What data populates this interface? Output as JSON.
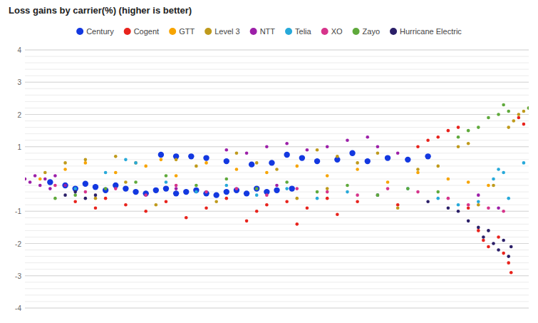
{
  "chart_data": {
    "type": "scatter",
    "title": "Loss gains by carrier(%) (higher is better)",
    "xlim": [
      0,
      100
    ],
    "ylim": [
      -4,
      4
    ],
    "yticks": [
      -4,
      -3,
      -2,
      -1,
      1,
      2,
      3,
      4
    ],
    "grid": true,
    "legend": "top",
    "tick_labels": "y",
    "series": [
      {
        "name": "Century",
        "color": "#1338e0",
        "marker": "large-circle",
        "x": [
          5,
          8,
          10,
          12,
          14,
          16,
          18,
          20,
          22,
          24,
          26,
          28,
          30,
          32,
          34,
          36,
          38,
          40,
          42,
          44,
          46,
          48,
          50,
          53,
          33,
          36,
          40,
          45,
          49,
          52,
          55,
          58,
          62,
          65,
          68,
          72,
          76,
          80,
          27,
          30
        ],
        "values": [
          -0.1,
          -0.2,
          -0.3,
          -0.15,
          -0.25,
          -0.35,
          -0.2,
          -0.3,
          -0.4,
          -0.45,
          -0.35,
          -0.3,
          -0.45,
          -0.4,
          -0.35,
          -0.45,
          -0.5,
          -0.4,
          -0.35,
          -0.45,
          -0.3,
          -0.4,
          -0.35,
          -0.3,
          0.7,
          0.65,
          0.55,
          0.45,
          0.5,
          0.75,
          0.65,
          0.55,
          0.6,
          0.8,
          0.55,
          0.65,
          0.6,
          0.7,
          0.75,
          0.7
        ]
      },
      {
        "name": "Cogent",
        "color": "#e8231c",
        "marker": "circle",
        "x": [
          10,
          14,
          16,
          20,
          24,
          28,
          32,
          36,
          40,
          44,
          48,
          52,
          56,
          60,
          62,
          66,
          70,
          74,
          78,
          80,
          82,
          84,
          86,
          88,
          90,
          91,
          92,
          94,
          95,
          96,
          96.5,
          98,
          99,
          54,
          46
        ],
        "values": [
          -0.7,
          -0.9,
          -0.6,
          -0.8,
          -1.0,
          -0.7,
          -1.2,
          -0.9,
          -0.6,
          -1.3,
          -0.8,
          -0.7,
          -0.9,
          -0.6,
          -1.1,
          -0.7,
          -0.5,
          -0.8,
          1.0,
          1.2,
          1.3,
          1.5,
          1.6,
          -0.9,
          -1.6,
          -1.9,
          -2.1,
          -1.8,
          -2.3,
          -2.6,
          -2.9,
          1.9,
          1.7,
          -1.4,
          -1.0
        ]
      },
      {
        "name": "GTT",
        "color": "#f7a400",
        "marker": "circle",
        "x": [
          3,
          8,
          12,
          18,
          24,
          30,
          36,
          42,
          48,
          54,
          60,
          66,
          72,
          78,
          84,
          88,
          92,
          27
        ],
        "values": [
          0.0,
          0.3,
          0.5,
          0.2,
          0.4,
          0.1,
          0.5,
          0.3,
          0.2,
          0.4,
          0.1,
          0.3,
          -0.1,
          0.2,
          0.0,
          -0.1,
          -0.2,
          0.6
        ]
      },
      {
        "name": "Level 3",
        "color": "#bf9a1c",
        "marker": "circle",
        "x": [
          4,
          8,
          12,
          14,
          18,
          22,
          26,
          30,
          34,
          38,
          42,
          46,
          50,
          54,
          58,
          62,
          66,
          70,
          74,
          78,
          82,
          86,
          88,
          90,
          93,
          96,
          97,
          98,
          99,
          100,
          20,
          60
        ],
        "values": [
          0.2,
          0.5,
          0.6,
          -0.6,
          0.7,
          0.5,
          -0.8,
          0.6,
          0.4,
          -0.7,
          0.8,
          0.5,
          0.3,
          -0.6,
          0.9,
          0.7,
          0.5,
          0.8,
          -0.9,
          0.3,
          0.4,
          1.0,
          1.1,
          -0.8,
          -0.2,
          1.6,
          1.8,
          2.0,
          2.1,
          2.2,
          -0.1,
          -0.3
        ]
      },
      {
        "name": "NTT",
        "color": "#9c1fa8",
        "marker": "circle",
        "x": [
          0,
          1,
          2,
          3,
          4,
          5,
          6,
          8,
          40,
          44,
          48,
          52,
          56,
          60,
          64,
          68,
          70,
          74,
          30,
          50,
          90,
          94
        ],
        "values": [
          0.0,
          -0.1,
          0.1,
          -0.2,
          0.0,
          -0.3,
          0.1,
          -0.2,
          0.9,
          0.8,
          1.0,
          1.1,
          0.9,
          1.0,
          1.2,
          1.3,
          1.0,
          0.8,
          -0.3,
          -0.2,
          -0.5,
          -0.9
        ]
      },
      {
        "name": "Telia",
        "color": "#27a9d9",
        "marker": "circle",
        "x": [
          10,
          16,
          22,
          28,
          34,
          40,
          46,
          52,
          58,
          64,
          70,
          76,
          82,
          86,
          90,
          93,
          94,
          95,
          96,
          99,
          20
        ],
        "values": [
          -0.3,
          0.2,
          0.5,
          -0.1,
          -0.4,
          -0.2,
          -0.5,
          -0.3,
          -0.6,
          -0.4,
          -0.5,
          -0.3,
          -0.6,
          -0.8,
          -0.7,
          0.0,
          0.3,
          0.2,
          -0.6,
          0.5,
          0.6
        ]
      },
      {
        "name": "XO",
        "color": "#d6348b",
        "marker": "circle",
        "x": [
          6,
          12,
          18,
          24,
          30,
          36,
          42,
          48,
          54,
          60,
          66,
          72,
          78,
          84,
          88,
          92,
          95
        ],
        "values": [
          -0.2,
          -0.4,
          -0.3,
          -0.5,
          -0.2,
          -0.4,
          -0.3,
          -0.5,
          -0.3,
          -0.4,
          -0.5,
          -0.3,
          -0.4,
          -0.6,
          -0.8,
          -0.9,
          -1.0
        ]
      },
      {
        "name": "Zayo",
        "color": "#5fa93b",
        "marker": "circle",
        "x": [
          6,
          10,
          16,
          22,
          28,
          34,
          40,
          46,
          52,
          58,
          64,
          70,
          76,
          82,
          86,
          88,
          90,
          92,
          94,
          95,
          96,
          100
        ],
        "values": [
          -0.6,
          -0.5,
          -0.3,
          -0.1,
          0.1,
          -0.2,
          0.0,
          -0.3,
          -0.1,
          -0.4,
          -0.2,
          -0.5,
          -0.3,
          -0.4,
          1.3,
          1.5,
          1.6,
          1.9,
          2.0,
          2.3,
          2.1,
          2.2
        ]
      },
      {
        "name": "Hurricane Electric",
        "color": "#2b1f68",
        "marker": "circle",
        "x": [
          8,
          10,
          12,
          14,
          80,
          84,
          86,
          88,
          90,
          91,
          92,
          93,
          94,
          95,
          96,
          96.5
        ],
        "values": [
          -0.5,
          -0.4,
          -0.6,
          -0.5,
          -0.7,
          -0.9,
          -1.0,
          -1.3,
          -1.5,
          -1.8,
          -1.6,
          -2.0,
          -2.2,
          -1.9,
          -2.4,
          -2.1
        ]
      }
    ]
  }
}
